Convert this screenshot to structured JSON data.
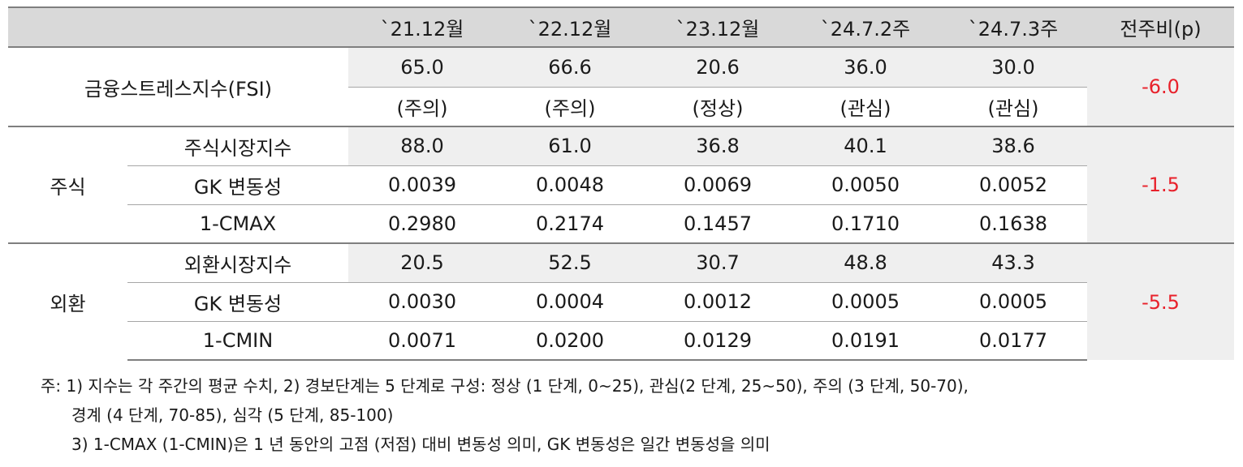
{
  "header": {
    "cols": [
      "`21.12월",
      "`22.12월",
      "`23.12월",
      "`24.7.2주",
      "`24.7.3주",
      "전주비(p)"
    ]
  },
  "fsi": {
    "label": "금융스트레스지수(FSI)",
    "values": [
      "65.0",
      "66.6",
      "20.6",
      "36.0",
      "30.0"
    ],
    "levels": [
      "(주의)",
      "(주의)",
      "(정상)",
      "(관심)",
      "(관심)"
    ],
    "change": "-6.0"
  },
  "stock": {
    "group": "주식",
    "change": "-1.5",
    "rows": [
      {
        "label": "주식시장지수",
        "values": [
          "88.0",
          "61.0",
          "36.8",
          "40.1",
          "38.6"
        ]
      },
      {
        "label": "GK 변동성",
        "values": [
          "0.0039",
          "0.0048",
          "0.0069",
          "0.0050",
          "0.0052"
        ]
      },
      {
        "label": "1-CMAX",
        "values": [
          "0.2980",
          "0.2174",
          "0.1457",
          "0.1710",
          "0.1638"
        ]
      }
    ]
  },
  "fx": {
    "group": "외환",
    "change": "-5.5",
    "rows": [
      {
        "label": "외환시장지수",
        "values": [
          "20.5",
          "52.5",
          "30.7",
          "48.8",
          "43.3"
        ]
      },
      {
        "label": "GK 변동성",
        "values": [
          "0.0030",
          "0.0004",
          "0.0012",
          "0.0005",
          "0.0005"
        ]
      },
      {
        "label": "1-CMIN",
        "values": [
          "0.0071",
          "0.0200",
          "0.0129",
          "0.0191",
          "0.0177"
        ]
      }
    ]
  },
  "notes": {
    "line1": "주: 1) 지수는 각 주간의 평균 수치, 2) 경보단계는 5 단계로 구성: 정상 (1 단계, 0~25), 관심(2 단계, 25~50), 주의 (3 단계, 50-70),",
    "line2": "경계 (4 단계, 70-85), 심각 (5 단계, 85-100)",
    "line3": "3) 1-CMAX (1-CMIN)은 1 년 동안의 고점 (저점) 대비 변동성 의미, GK 변동성은 일간 변동성을 의미"
  }
}
